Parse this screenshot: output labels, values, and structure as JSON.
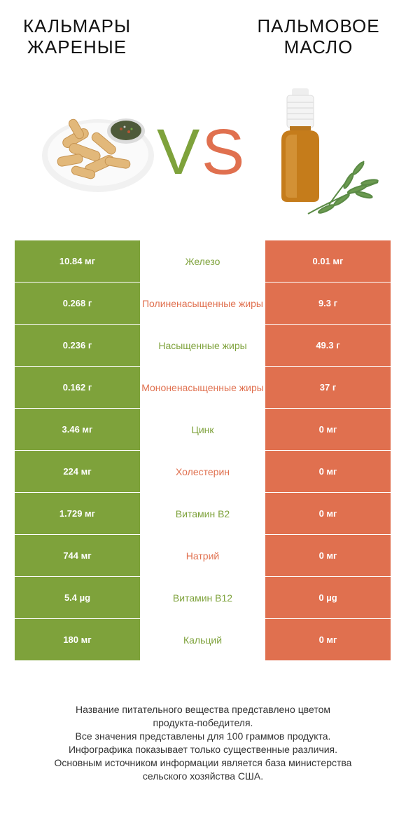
{
  "header": {
    "left_title_line1": "КАЛЬМАРЫ",
    "left_title_line2": "ЖАРЕНЫЕ",
    "right_title_line1": "ПАЛЬМОВОЕ",
    "right_title_line2": "МАСЛО",
    "vs_text": "VS",
    "colors": {
      "winner_left": "#7ea23b",
      "winner_right": "#e0704f"
    }
  },
  "images": {
    "left": "fried-calamari-plate",
    "right": "oil-bottle-with-rosemary"
  },
  "rows": [
    {
      "left": "10.84 мг",
      "name": "Железо",
      "right": "0.01 мг",
      "winner": "left"
    },
    {
      "left": "0.268 г",
      "name": "Полиненасыщенные жиры",
      "right": "9.3 г",
      "winner": "right"
    },
    {
      "left": "0.236 г",
      "name": "Насыщенные жиры",
      "right": "49.3 г",
      "winner": "left"
    },
    {
      "left": "0.162 г",
      "name": "Мононенасыщенные жиры",
      "right": "37 г",
      "winner": "right"
    },
    {
      "left": "3.46 мг",
      "name": "Цинк",
      "right": "0 мг",
      "winner": "left"
    },
    {
      "left": "224 мг",
      "name": "Холестерин",
      "right": "0 мг",
      "winner": "right"
    },
    {
      "left": "1.729 мг",
      "name": "Витамин B2",
      "right": "0 мг",
      "winner": "left"
    },
    {
      "left": "744 мг",
      "name": "Натрий",
      "right": "0 мг",
      "winner": "right"
    },
    {
      "left": "5.4 µg",
      "name": "Витамин B12",
      "right": "0 µg",
      "winner": "left"
    },
    {
      "left": "180 мг",
      "name": "Кальций",
      "right": "0 мг",
      "winner": "left"
    }
  ],
  "footnote": {
    "line1": "Название питательного вещества представлено цветом",
    "line2": "продукта-победителя.",
    "line3": "Все значения представлены для 100 граммов продукта.",
    "line4": "Инфографика показывает только существенные различия.",
    "line5": "Основным источником информации является база министерства",
    "line6": "сельского хозяйства США."
  }
}
